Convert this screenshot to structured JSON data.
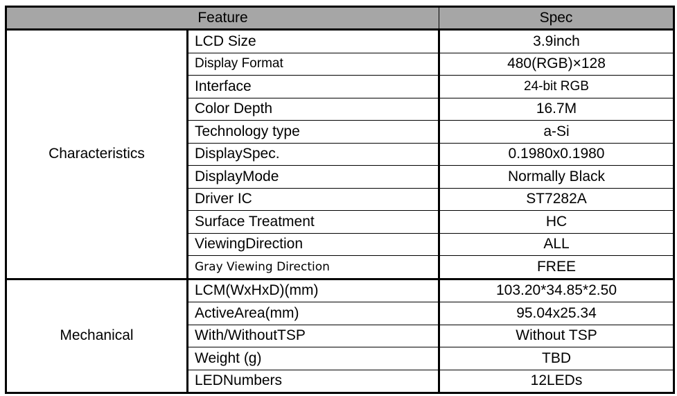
{
  "header": {
    "feature": "Feature",
    "spec": "Spec"
  },
  "groups": [
    {
      "name": "Characteristics",
      "rows": [
        {
          "feature": "LCD Size",
          "spec": "3.9inch"
        },
        {
          "feature": "Display Format",
          "spec": "480(RGB)×128"
        },
        {
          "feature": "Interface",
          "spec": "24-bit RGB"
        },
        {
          "feature": "Color Depth",
          "spec": "16.7M"
        },
        {
          "feature": "Technology type",
          "spec": "a-Si"
        },
        {
          "feature": "DisplaySpec.",
          "spec": "0.1980x0.1980"
        },
        {
          "feature": "DisplayMode",
          "spec": "Normally Black"
        },
        {
          "feature": "Driver IC",
          "spec": "ST7282A"
        },
        {
          "feature": "Surface Treatment",
          "spec": "HC"
        },
        {
          "feature": "ViewingDirection",
          "spec": "ALL"
        },
        {
          "feature": "Gray Viewing Direction",
          "spec": "FREE"
        }
      ]
    },
    {
      "name": "Mechanical",
      "rows": [
        {
          "feature": "LCM(WxHxD)(mm)",
          "spec": "103.20*34.85*2.50"
        },
        {
          "feature": "ActiveArea(mm)",
          "spec": "95.04x25.34"
        },
        {
          "feature": "With/WithoutTSP",
          "spec": "Without TSP"
        },
        {
          "feature": "Weight (g)",
          "spec": "TBD"
        },
        {
          "feature": "LEDNumbers",
          "spec": "12LEDs"
        }
      ]
    }
  ]
}
